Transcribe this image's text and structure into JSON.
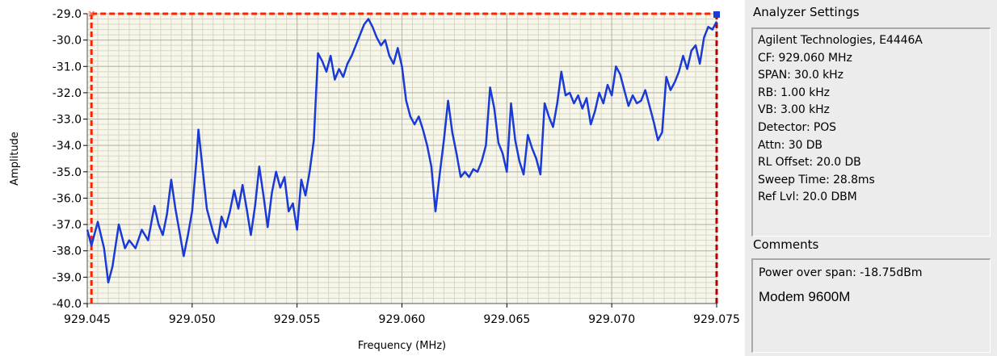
{
  "chart_data": {
    "type": "line",
    "xlabel": "Frequency (MHz)",
    "ylabel": "Amplitude",
    "xlim": [
      929.045,
      929.075
    ],
    "ylim": [
      -40.0,
      -29.0
    ],
    "x_ticks": [
      929.045,
      929.05,
      929.055,
      929.06,
      929.065,
      929.07,
      929.075
    ],
    "x_tick_labels": [
      "929.045",
      "929.050",
      "929.055",
      "929.060",
      "929.065",
      "929.070",
      "929.075"
    ],
    "y_ticks": [
      -29,
      -30,
      -31,
      -32,
      -33,
      -34,
      -35,
      -36,
      -37,
      -38,
      -39,
      -40
    ],
    "y_tick_labels": [
      "-29.0",
      "-30.0",
      "-31.0",
      "-32.0",
      "-33.0",
      "-34.0",
      "-35.0",
      "-36.0",
      "-37.0",
      "-38.0",
      "-39.0",
      "-40.0"
    ],
    "grid": true,
    "series": [
      {
        "color": "#1a3ad6",
        "points": [
          [
            929.045,
            -37.2
          ],
          [
            929.0452,
            -37.8
          ],
          [
            929.0455,
            -36.9
          ],
          [
            929.0458,
            -37.9
          ],
          [
            929.046,
            -39.2
          ],
          [
            929.0462,
            -38.6
          ],
          [
            929.0465,
            -37.0
          ],
          [
            929.0468,
            -37.9
          ],
          [
            929.047,
            -37.6
          ],
          [
            929.0473,
            -37.9
          ],
          [
            929.0476,
            -37.2
          ],
          [
            929.0479,
            -37.6
          ],
          [
            929.0482,
            -36.3
          ],
          [
            929.0484,
            -37.0
          ],
          [
            929.0486,
            -37.4
          ],
          [
            929.0488,
            -36.6
          ],
          [
            929.049,
            -35.3
          ],
          [
            929.0492,
            -36.4
          ],
          [
            929.0494,
            -37.3
          ],
          [
            929.0496,
            -38.2
          ],
          [
            929.0498,
            -37.4
          ],
          [
            929.05,
            -36.5
          ],
          [
            929.0502,
            -34.6
          ],
          [
            929.0503,
            -33.4
          ],
          [
            929.0505,
            -34.9
          ],
          [
            929.0507,
            -36.4
          ],
          [
            929.051,
            -37.3
          ],
          [
            929.0512,
            -37.7
          ],
          [
            929.0514,
            -36.7
          ],
          [
            929.0516,
            -37.1
          ],
          [
            929.0518,
            -36.5
          ],
          [
            929.052,
            -35.7
          ],
          [
            929.0522,
            -36.4
          ],
          [
            929.0524,
            -35.5
          ],
          [
            929.0526,
            -36.4
          ],
          [
            929.0528,
            -37.4
          ],
          [
            929.053,
            -36.3
          ],
          [
            929.0532,
            -34.8
          ],
          [
            929.0534,
            -35.9
          ],
          [
            929.0536,
            -37.1
          ],
          [
            929.0538,
            -35.8
          ],
          [
            929.054,
            -35.0
          ],
          [
            929.0542,
            -35.6
          ],
          [
            929.0544,
            -35.2
          ],
          [
            929.0546,
            -36.5
          ],
          [
            929.0548,
            -36.2
          ],
          [
            929.055,
            -37.2
          ],
          [
            929.0552,
            -35.3
          ],
          [
            929.0554,
            -35.9
          ],
          [
            929.0556,
            -35.0
          ],
          [
            929.0558,
            -33.8
          ],
          [
            929.056,
            -30.5
          ],
          [
            929.0562,
            -30.8
          ],
          [
            929.0564,
            -31.2
          ],
          [
            929.0566,
            -30.6
          ],
          [
            929.0568,
            -31.5
          ],
          [
            929.057,
            -31.1
          ],
          [
            929.0572,
            -31.4
          ],
          [
            929.0574,
            -30.9
          ],
          [
            929.0576,
            -30.6
          ],
          [
            929.0578,
            -30.2
          ],
          [
            929.058,
            -29.8
          ],
          [
            929.0582,
            -29.4
          ],
          [
            929.0584,
            -29.2
          ],
          [
            929.0586,
            -29.5
          ],
          [
            929.0588,
            -29.9
          ],
          [
            929.059,
            -30.2
          ],
          [
            929.0592,
            -30.0
          ],
          [
            929.0594,
            -30.6
          ],
          [
            929.0596,
            -30.9
          ],
          [
            929.0598,
            -30.3
          ],
          [
            929.06,
            -31.0
          ],
          [
            929.0602,
            -32.3
          ],
          [
            929.0604,
            -32.9
          ],
          [
            929.0606,
            -33.2
          ],
          [
            929.0608,
            -32.9
          ],
          [
            929.061,
            -33.4
          ],
          [
            929.0612,
            -34.0
          ],
          [
            929.0614,
            -34.8
          ],
          [
            929.0616,
            -36.5
          ],
          [
            929.0618,
            -35.1
          ],
          [
            929.062,
            -33.8
          ],
          [
            929.0622,
            -32.3
          ],
          [
            929.0624,
            -33.5
          ],
          [
            929.0626,
            -34.3
          ],
          [
            929.0628,
            -35.2
          ],
          [
            929.063,
            -35.0
          ],
          [
            929.0632,
            -35.2
          ],
          [
            929.0634,
            -34.9
          ],
          [
            929.0636,
            -35.0
          ],
          [
            929.0638,
            -34.6
          ],
          [
            929.064,
            -34.0
          ],
          [
            929.0642,
            -31.8
          ],
          [
            929.0644,
            -32.6
          ],
          [
            929.0646,
            -33.9
          ],
          [
            929.0648,
            -34.3
          ],
          [
            929.065,
            -35.0
          ],
          [
            929.0652,
            -32.4
          ],
          [
            929.0654,
            -33.8
          ],
          [
            929.0656,
            -34.6
          ],
          [
            929.0658,
            -35.1
          ],
          [
            929.066,
            -33.6
          ],
          [
            929.0662,
            -34.1
          ],
          [
            929.0664,
            -34.5
          ],
          [
            929.0666,
            -35.1
          ],
          [
            929.0668,
            -32.4
          ],
          [
            929.067,
            -32.9
          ],
          [
            929.0672,
            -33.3
          ],
          [
            929.0674,
            -32.4
          ],
          [
            929.0676,
            -31.2
          ],
          [
            929.0678,
            -32.1
          ],
          [
            929.068,
            -32.0
          ],
          [
            929.0682,
            -32.4
          ],
          [
            929.0684,
            -32.1
          ],
          [
            929.0686,
            -32.6
          ],
          [
            929.0688,
            -32.2
          ],
          [
            929.069,
            -33.2
          ],
          [
            929.0692,
            -32.7
          ],
          [
            929.0694,
            -32.0
          ],
          [
            929.0696,
            -32.4
          ],
          [
            929.0698,
            -31.7
          ],
          [
            929.07,
            -32.1
          ],
          [
            929.0702,
            -31.0
          ],
          [
            929.0704,
            -31.3
          ],
          [
            929.0706,
            -31.9
          ],
          [
            929.0708,
            -32.5
          ],
          [
            929.071,
            -32.1
          ],
          [
            929.0712,
            -32.4
          ],
          [
            929.0714,
            -32.3
          ],
          [
            929.0716,
            -31.9
          ],
          [
            929.0718,
            -32.5
          ],
          [
            929.072,
            -33.1
          ],
          [
            929.0722,
            -33.8
          ],
          [
            929.0724,
            -33.5
          ],
          [
            929.0726,
            -31.4
          ],
          [
            929.0728,
            -31.9
          ],
          [
            929.073,
            -31.6
          ],
          [
            929.0732,
            -31.2
          ],
          [
            929.0734,
            -30.6
          ],
          [
            929.0736,
            -31.1
          ],
          [
            929.0738,
            -30.4
          ],
          [
            929.074,
            -30.2
          ],
          [
            929.0742,
            -30.9
          ],
          [
            929.0744,
            -29.9
          ],
          [
            929.0746,
            -29.5
          ],
          [
            929.0748,
            -29.6
          ],
          [
            929.075,
            -29.3
          ]
        ]
      }
    ],
    "markers": [
      {
        "x": 929.0452,
        "color": "#ff2200"
      },
      {
        "x": 929.075,
        "color": "#b00000"
      }
    ],
    "span_line": {
      "y": -29.0,
      "color": "#ff2200"
    }
  },
  "settings": {
    "heading": "Analyzer Settings",
    "lines": [
      "Agilent Technologies, E4446A",
      "CF: 929.060 MHz",
      "SPAN: 30.0 kHz",
      "RB: 1.00 kHz",
      "VB: 3.00 kHz",
      "Detector: POS",
      "Attn: 30 DB",
      "RL Offset: 20.0 DB",
      "Sweep Time: 28.8ms",
      "Ref Lvl: 20.0 DBM"
    ]
  },
  "comments": {
    "heading": "Comments",
    "power": "Power over span: -18.75dBm",
    "title": "Modem 9600M"
  }
}
